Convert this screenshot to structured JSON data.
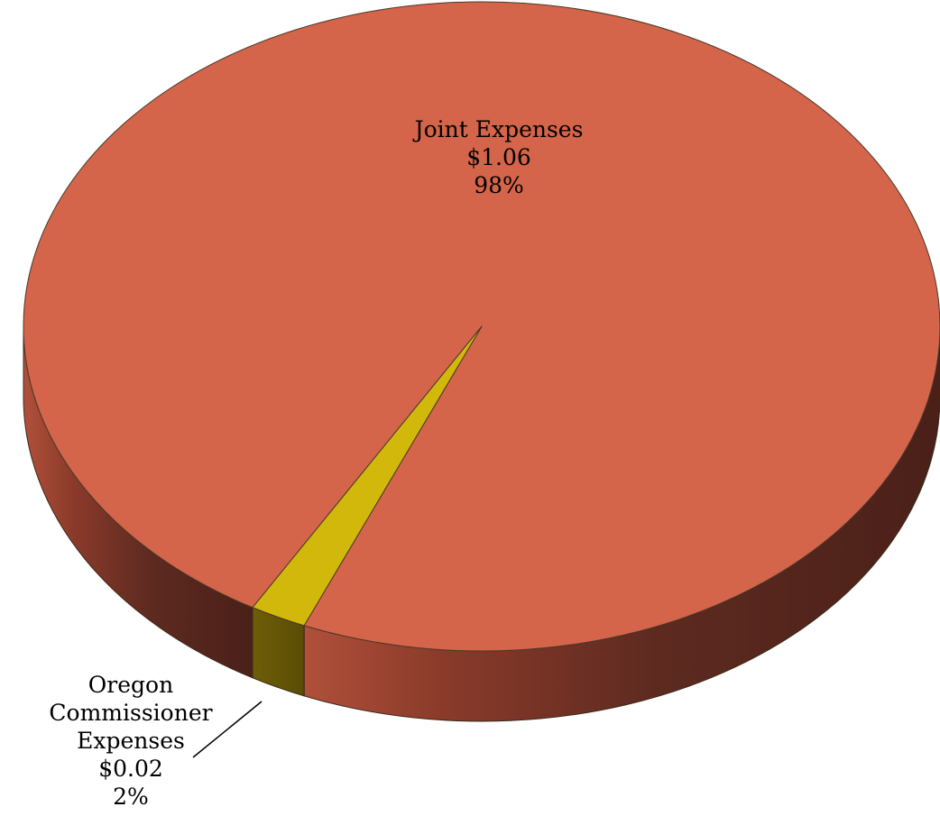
{
  "chart_data": {
    "type": "pie",
    "title": "",
    "slices": [
      {
        "name": "Joint Expenses",
        "value": 1.06,
        "value_label": "$1.06",
        "percent_label": "98%",
        "percent": 98,
        "color": "#d4644a"
      },
      {
        "name": "Oregon Commissioner Expenses",
        "name_lines": [
          "Oregon",
          "Commissioner",
          "Expenses"
        ],
        "value": 0.02,
        "value_label": "$0.02",
        "percent_label": "2%",
        "percent": 2,
        "color": "#d2b80a"
      }
    ],
    "style": "3d",
    "legend": "none"
  }
}
